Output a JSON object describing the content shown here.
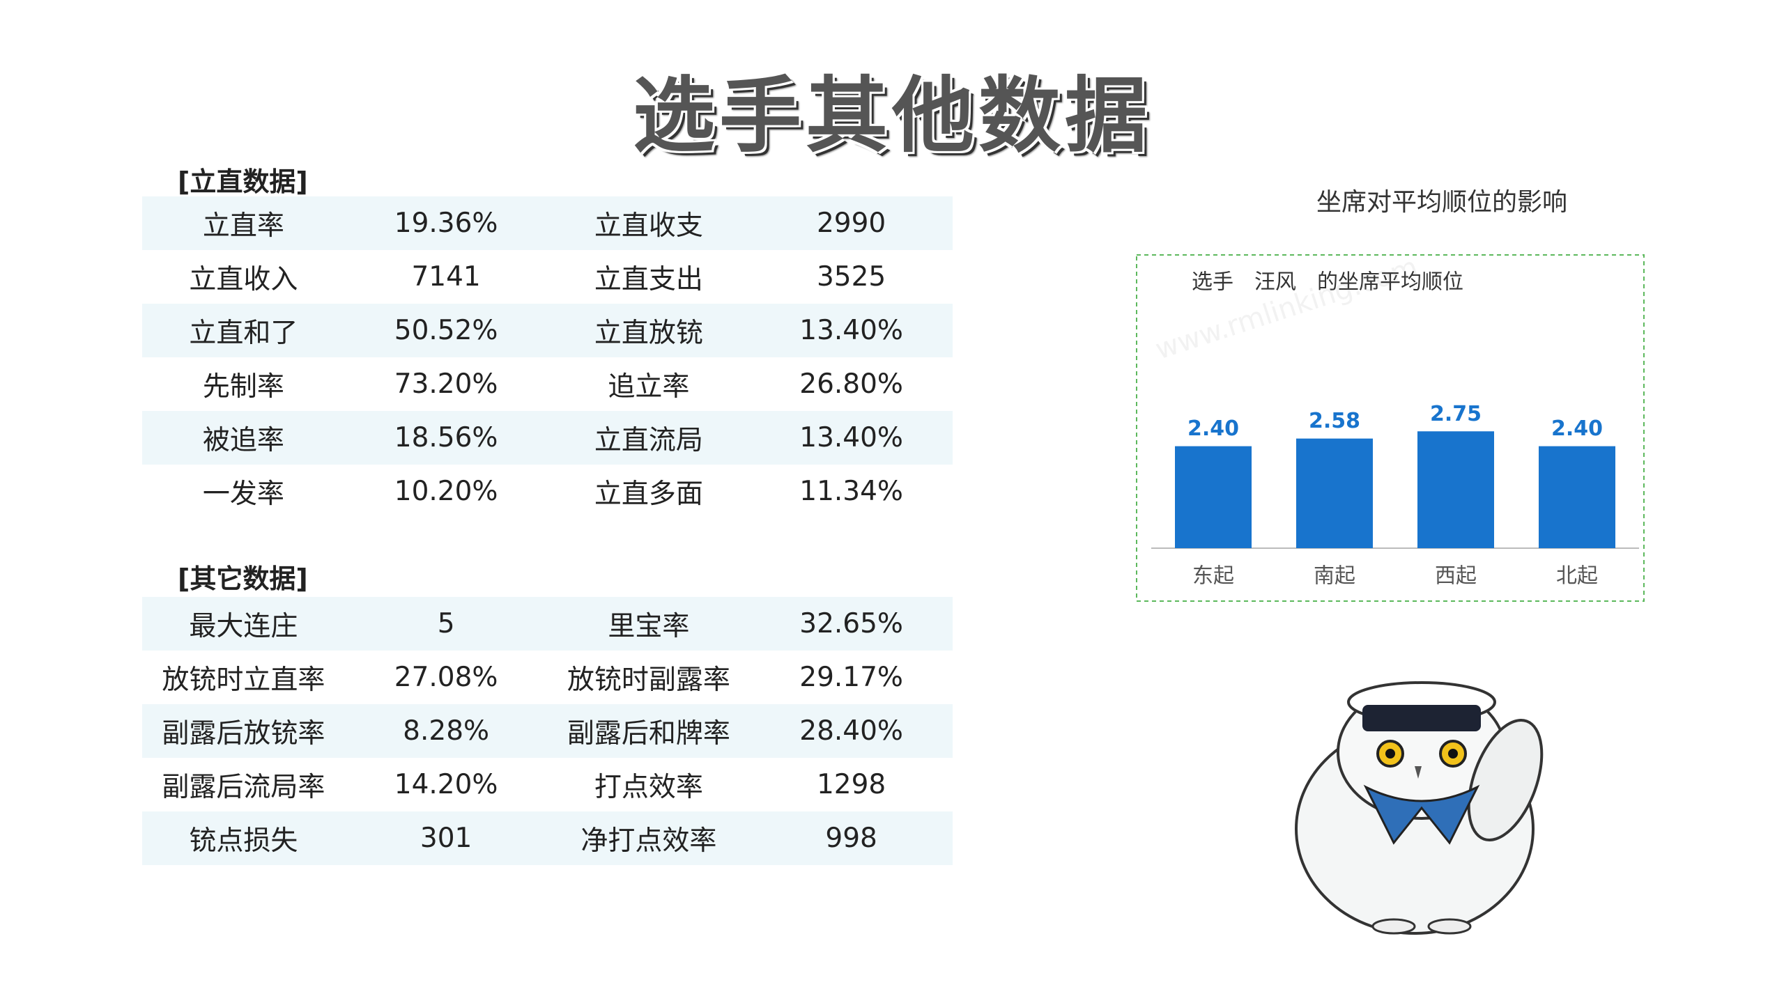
{
  "title": "选手其他数据",
  "watermark": "www.rmlinking.com",
  "sections": [
    {
      "heading": "[立直数据]",
      "rows": [
        [
          "立直率",
          "19.36%",
          "立直收支",
          "2990"
        ],
        [
          "立直收入",
          "7141",
          "立直支出",
          "3525"
        ],
        [
          "立直和了",
          "50.52%",
          "立直放铳",
          "13.40%"
        ],
        [
          "先制率",
          "73.20%",
          "追立率",
          "26.80%"
        ],
        [
          "被追率",
          "18.56%",
          "立直流局",
          "13.40%"
        ],
        [
          "一发率",
          "10.20%",
          "立直多面",
          "11.34%"
        ]
      ]
    },
    {
      "heading": "[其它数据]",
      "rows": [
        [
          "最大连庄",
          "5",
          "里宝率",
          "32.65%"
        ],
        [
          "放铳时立直率",
          "27.08%",
          "放铳时副露率",
          "29.17%"
        ],
        [
          "副露后放铳率",
          "8.28%",
          "副露后和牌率",
          "28.40%"
        ],
        [
          "副露后流局率",
          "14.20%",
          "打点效率",
          "1298"
        ],
        [
          "铳点损失",
          "301",
          "净打点效率",
          "998"
        ]
      ]
    }
  ],
  "chart_data": {
    "type": "bar",
    "title": "坐席对平均顺位的影响",
    "subtitle": "选手　汪风　的坐席平均顺位",
    "categories": [
      "东起",
      "南起",
      "西起",
      "北起"
    ],
    "values": [
      2.4,
      2.58,
      2.75,
      2.4
    ],
    "value_labels": [
      "2.40",
      "2.58",
      "2.75",
      "2.40"
    ],
    "color": "#1874cd",
    "ylim": [
      0,
      4
    ]
  }
}
